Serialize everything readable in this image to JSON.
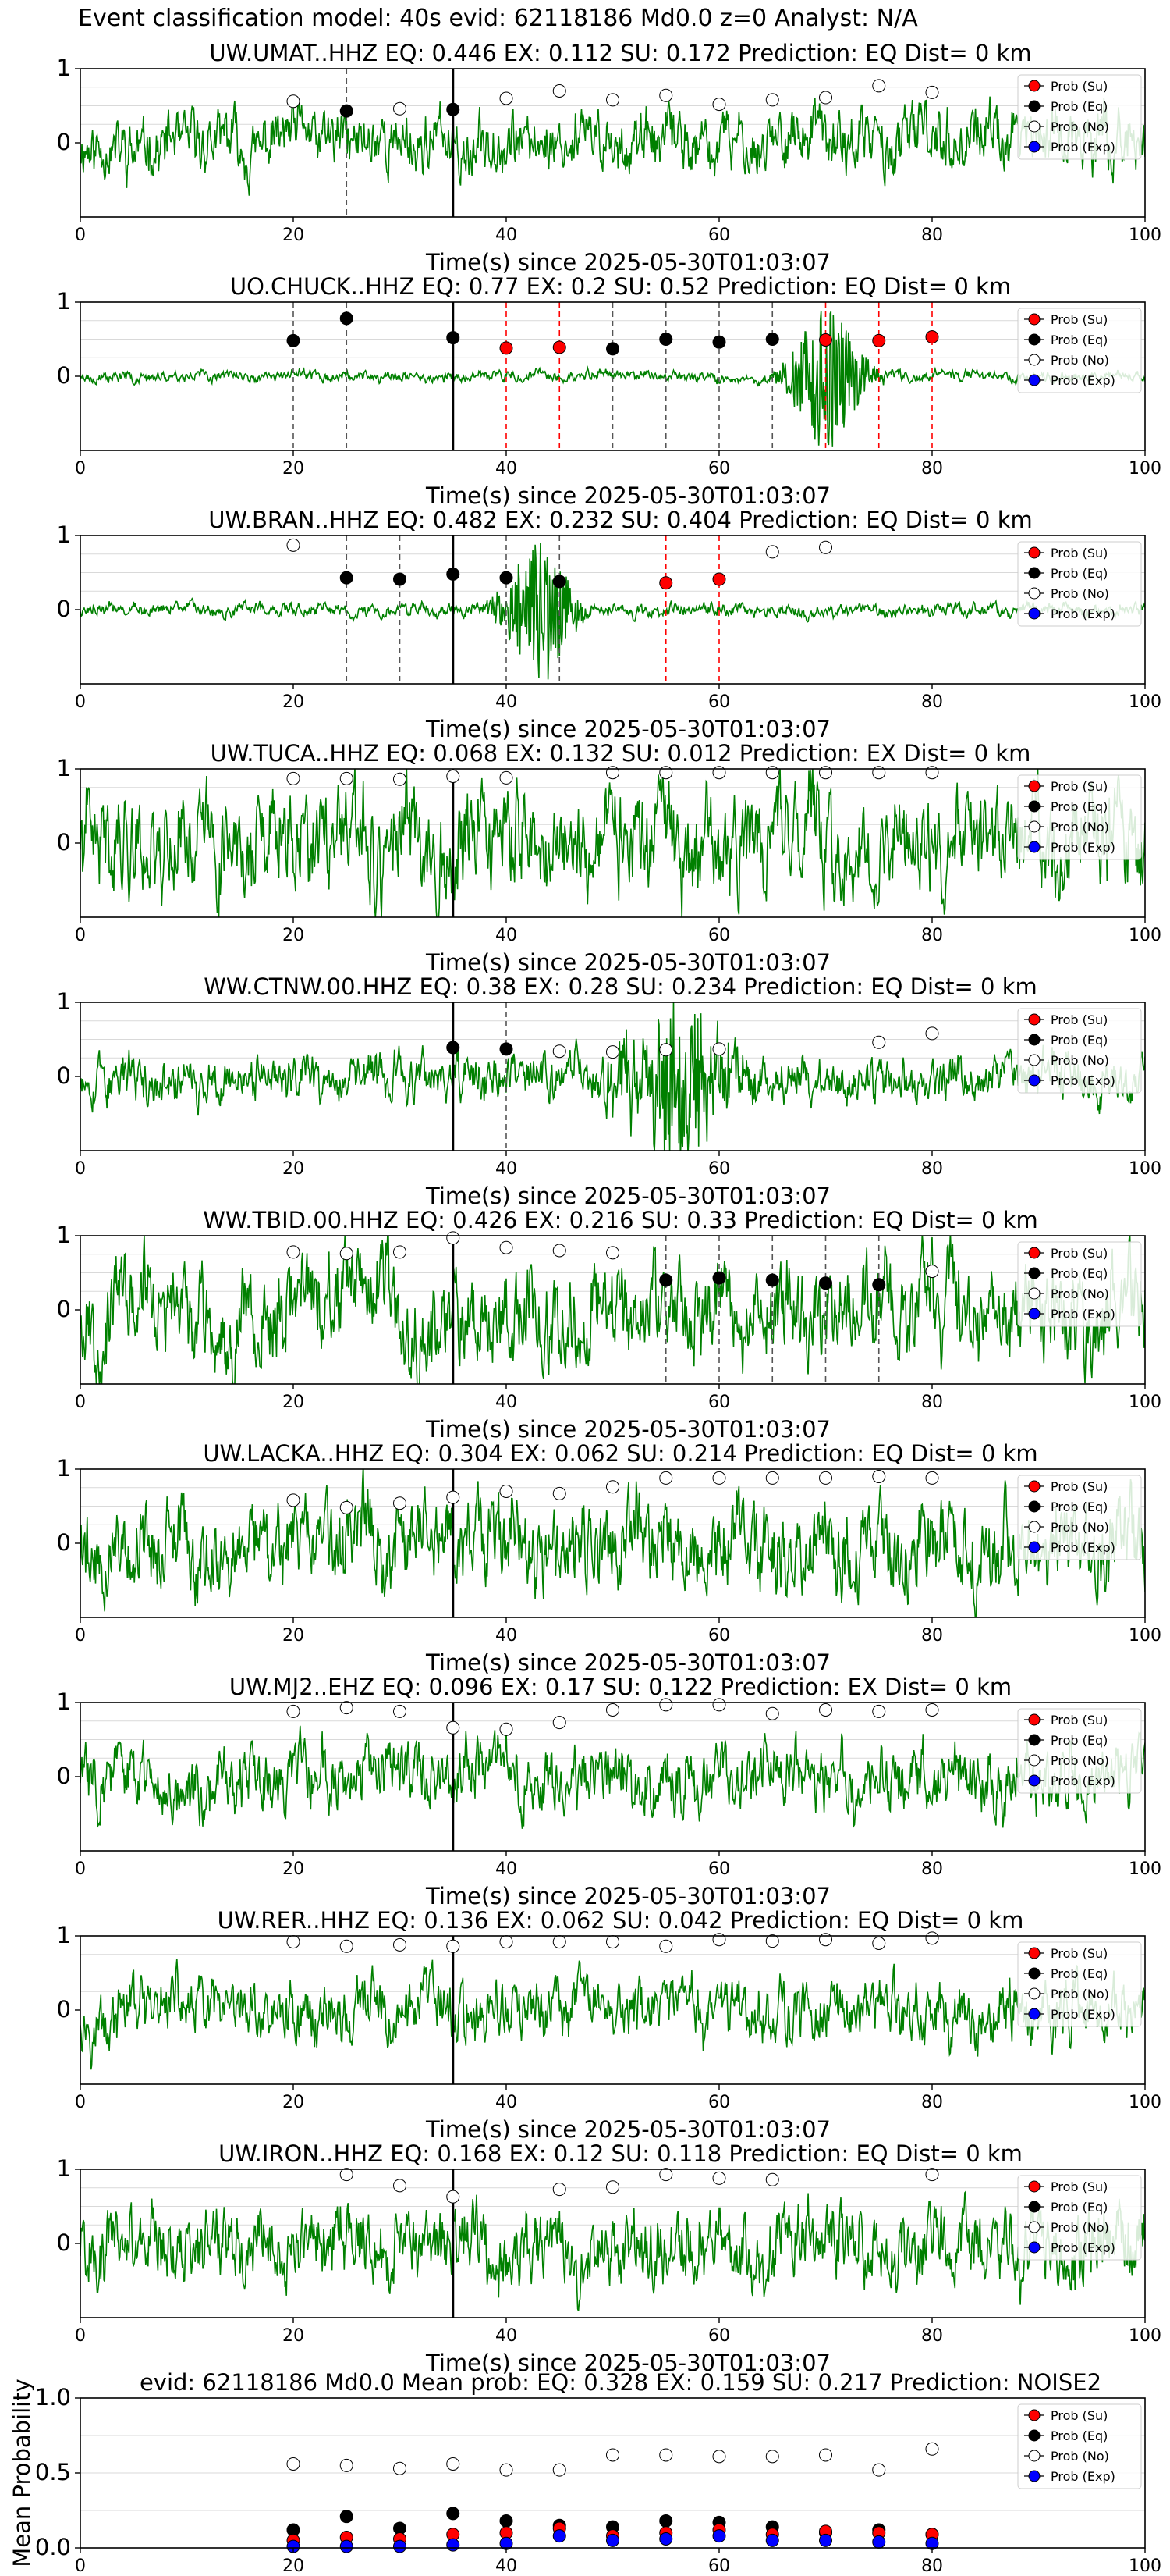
{
  "page_title": "Event classification model: 40s evid: 62118186 Md0.0 z=0 Analyst: N/A",
  "legend": [
    "Prob (Su)",
    "Prob (Eq)",
    "Prob (No)",
    "Prob (Exp)"
  ],
  "colors": {
    "waveform": "#008000",
    "su": "#ff0000",
    "eq": "#000000",
    "no": "#ffffff",
    "exp": "#0000ff",
    "grid": "#d9d9d9"
  },
  "chart_data": [
    {
      "type": "line",
      "title": "UW.UMAT..HHZ   EQ: 0.446  EX: 0.112  SU: 0.172   Prediction: EQ    Dist= 0 km",
      "xlabel": "Time(s) since 2025-05-30T01:03:07",
      "xlim": [
        0,
        100
      ],
      "ylim": [
        -1,
        1
      ],
      "xticks": [
        0,
        20,
        40,
        60,
        80,
        100
      ],
      "yticks": [
        0,
        1
      ],
      "onset_line_x": 35,
      "waveform_note": "normalized seismogram trace",
      "waveform_amplitude": 0.45,
      "waveform_seed": 11,
      "points": [
        {
          "x": 20,
          "y": 0.56,
          "class": "no"
        },
        {
          "x": 25,
          "y": 0.43,
          "class": "eq",
          "dashed": true
        },
        {
          "x": 30,
          "y": 0.46,
          "class": "no"
        },
        {
          "x": 35,
          "y": 0.45,
          "class": "eq"
        },
        {
          "x": 40,
          "y": 0.6,
          "class": "no"
        },
        {
          "x": 45,
          "y": 0.7,
          "class": "no"
        },
        {
          "x": 50,
          "y": 0.58,
          "class": "no"
        },
        {
          "x": 55,
          "y": 0.64,
          "class": "no"
        },
        {
          "x": 60,
          "y": 0.52,
          "class": "no"
        },
        {
          "x": 65,
          "y": 0.58,
          "class": "no"
        },
        {
          "x": 70,
          "y": 0.61,
          "class": "no"
        },
        {
          "x": 75,
          "y": 0.77,
          "class": "no"
        },
        {
          "x": 80,
          "y": 0.68,
          "class": "no"
        }
      ]
    },
    {
      "type": "line",
      "title": "UO.CHUCK..HHZ   EQ: 0.77  EX: 0.2  SU: 0.52   Prediction: EQ    Dist= 0 km",
      "xlabel": "Time(s) since 2025-05-30T01:03:07",
      "xlim": [
        0,
        100
      ],
      "ylim": [
        -1,
        1
      ],
      "xticks": [
        0,
        20,
        40,
        60,
        80,
        100
      ],
      "yticks": [
        0,
        1
      ],
      "onset_line_x": 35,
      "waveform_note": "low-noise trace with burst near 70 s",
      "waveform_amplitude": 0.08,
      "waveform_seed": 23,
      "waveform_burst": {
        "center": 70,
        "width": 3,
        "amplitude": 1.0
      },
      "points": [
        {
          "x": 20,
          "y": 0.48,
          "class": "eq",
          "dashed": true
        },
        {
          "x": 25,
          "y": 0.78,
          "class": "eq",
          "dashed": true
        },
        {
          "x": 35,
          "y": 0.52,
          "class": "eq"
        },
        {
          "x": 40,
          "y": 0.38,
          "class": "su",
          "dashed": true
        },
        {
          "x": 45,
          "y": 0.39,
          "class": "su",
          "dashed": true
        },
        {
          "x": 50,
          "y": 0.37,
          "class": "eq",
          "dashed": true
        },
        {
          "x": 55,
          "y": 0.5,
          "class": "eq",
          "dashed": true
        },
        {
          "x": 60,
          "y": 0.46,
          "class": "eq",
          "dashed": true
        },
        {
          "x": 65,
          "y": 0.5,
          "class": "eq",
          "dashed": true
        },
        {
          "x": 70,
          "y": 0.49,
          "class": "su",
          "dashed": true
        },
        {
          "x": 75,
          "y": 0.48,
          "class": "su",
          "dashed": true
        },
        {
          "x": 80,
          "y": 0.53,
          "class": "su",
          "dashed": true
        }
      ]
    },
    {
      "type": "line",
      "title": "UW.BRAN..HHZ   EQ: 0.482  EX: 0.232  SU: 0.404   Prediction: EQ    Dist= 0 km",
      "xlabel": "Time(s) since 2025-05-30T01:03:07",
      "xlim": [
        0,
        100
      ],
      "ylim": [
        -1,
        1
      ],
      "xticks": [
        0,
        20,
        40,
        60,
        80,
        100
      ],
      "yticks": [
        0,
        1
      ],
      "onset_line_x": 35,
      "waveform_note": "low-noise trace with burst near 43 s",
      "waveform_amplitude": 0.1,
      "waveform_seed": 37,
      "waveform_burst": {
        "center": 43,
        "width": 3,
        "amplitude": 1.0
      },
      "points": [
        {
          "x": 20,
          "y": 0.87,
          "class": "no"
        },
        {
          "x": 25,
          "y": 0.43,
          "class": "eq",
          "dashed": true
        },
        {
          "x": 30,
          "y": 0.41,
          "class": "eq",
          "dashed": true
        },
        {
          "x": 35,
          "y": 0.48,
          "class": "eq"
        },
        {
          "x": 40,
          "y": 0.43,
          "class": "eq",
          "dashed": true
        },
        {
          "x": 45,
          "y": 0.38,
          "class": "eq",
          "dashed": true
        },
        {
          "x": 55,
          "y": 0.36,
          "class": "su",
          "dashed": true
        },
        {
          "x": 60,
          "y": 0.41,
          "class": "su",
          "dashed": true
        },
        {
          "x": 65,
          "y": 0.78,
          "class": "no"
        },
        {
          "x": 70,
          "y": 0.84,
          "class": "no"
        }
      ]
    },
    {
      "type": "line",
      "title": "UW.TUCA..HHZ   EQ: 0.068  EX: 0.132  SU: 0.012   Prediction: EX    Dist= 0 km",
      "xlabel": "Time(s) since 2025-05-30T01:03:07",
      "xlim": [
        0,
        100
      ],
      "ylim": [
        -1,
        1
      ],
      "xticks": [
        0,
        20,
        40,
        60,
        80,
        100
      ],
      "yticks": [
        0,
        1
      ],
      "onset_line_x": 35,
      "waveform_note": "broadband noise trace",
      "waveform_amplitude": 0.75,
      "waveform_seed": 41,
      "points": [
        {
          "x": 20,
          "y": 0.87,
          "class": "no"
        },
        {
          "x": 25,
          "y": 0.87,
          "class": "no"
        },
        {
          "x": 30,
          "y": 0.86,
          "class": "no"
        },
        {
          "x": 35,
          "y": 0.9,
          "class": "no"
        },
        {
          "x": 40,
          "y": 0.88,
          "class": "no"
        },
        {
          "x": 50,
          "y": 0.95,
          "class": "no"
        },
        {
          "x": 55,
          "y": 0.95,
          "class": "no"
        },
        {
          "x": 60,
          "y": 0.95,
          "class": "no"
        },
        {
          "x": 65,
          "y": 0.95,
          "class": "no"
        },
        {
          "x": 70,
          "y": 0.95,
          "class": "no"
        },
        {
          "x": 75,
          "y": 0.95,
          "class": "no"
        },
        {
          "x": 80,
          "y": 0.95,
          "class": "no"
        }
      ]
    },
    {
      "type": "line",
      "title": "WW.CTNW.00.HHZ   EQ: 0.38  EX: 0.28  SU: 0.234   Prediction: EQ    Dist= 0 km",
      "xlabel": "Time(s) since 2025-05-30T01:03:07",
      "xlim": [
        0,
        100
      ],
      "ylim": [
        -1,
        1
      ],
      "xticks": [
        0,
        20,
        40,
        60,
        80,
        100
      ],
      "yticks": [
        0,
        1
      ],
      "onset_line_x": 35,
      "waveform_note": "trace with strong burst near 56 s",
      "waveform_amplitude": 0.35,
      "waveform_seed": 53,
      "waveform_burst": {
        "center": 56,
        "width": 5,
        "amplitude": 1.0
      },
      "points": [
        {
          "x": 35,
          "y": 0.39,
          "class": "eq"
        },
        {
          "x": 40,
          "y": 0.37,
          "class": "eq",
          "dashed": true
        },
        {
          "x": 45,
          "y": 0.34,
          "class": "no"
        },
        {
          "x": 50,
          "y": 0.33,
          "class": "no"
        },
        {
          "x": 55,
          "y": 0.36,
          "class": "no"
        },
        {
          "x": 60,
          "y": 0.37,
          "class": "no"
        },
        {
          "x": 75,
          "y": 0.46,
          "class": "no"
        },
        {
          "x": 80,
          "y": 0.58,
          "class": "no"
        }
      ]
    },
    {
      "type": "line",
      "title": "WW.TBID.00.HHZ   EQ: 0.426  EX: 0.216  SU: 0.33   Prediction: EQ    Dist= 0 km",
      "xlabel": "Time(s) since 2025-05-30T01:03:07",
      "xlim": [
        0,
        100
      ],
      "ylim": [
        -1,
        1
      ],
      "xticks": [
        0,
        20,
        40,
        60,
        80,
        100
      ],
      "yticks": [
        0,
        1
      ],
      "onset_line_x": 35,
      "waveform_note": "broadband noise trace",
      "waveform_amplitude": 0.7,
      "waveform_seed": 67,
      "points": [
        {
          "x": 20,
          "y": 0.78,
          "class": "no"
        },
        {
          "x": 25,
          "y": 0.76,
          "class": "no"
        },
        {
          "x": 30,
          "y": 0.78,
          "class": "no"
        },
        {
          "x": 35,
          "y": 0.97,
          "class": "no"
        },
        {
          "x": 40,
          "y": 0.84,
          "class": "no"
        },
        {
          "x": 45,
          "y": 0.8,
          "class": "no"
        },
        {
          "x": 50,
          "y": 0.77,
          "class": "no"
        },
        {
          "x": 55,
          "y": 0.4,
          "class": "eq",
          "dashed": true
        },
        {
          "x": 60,
          "y": 0.43,
          "class": "eq",
          "dashed": true
        },
        {
          "x": 65,
          "y": 0.4,
          "class": "eq",
          "dashed": true
        },
        {
          "x": 70,
          "y": 0.36,
          "class": "eq",
          "dashed": true
        },
        {
          "x": 75,
          "y": 0.34,
          "class": "eq",
          "dashed": true
        },
        {
          "x": 80,
          "y": 0.52,
          "class": "no"
        }
      ]
    },
    {
      "type": "line",
      "title": "UW.LACKA..HHZ   EQ: 0.304  EX: 0.062  SU: 0.214   Prediction: EQ    Dist= 0 km",
      "xlabel": "Time(s) since 2025-05-30T01:03:07",
      "xlim": [
        0,
        100
      ],
      "ylim": [
        -1,
        1
      ],
      "xticks": [
        0,
        20,
        40,
        60,
        80,
        100
      ],
      "yticks": [
        0,
        1
      ],
      "onset_line_x": 35,
      "waveform_note": "broadband noise trace",
      "waveform_amplitude": 0.65,
      "waveform_seed": 79,
      "points": [
        {
          "x": 20,
          "y": 0.58,
          "class": "no"
        },
        {
          "x": 25,
          "y": 0.48,
          "class": "no"
        },
        {
          "x": 30,
          "y": 0.54,
          "class": "no"
        },
        {
          "x": 35,
          "y": 0.62,
          "class": "no"
        },
        {
          "x": 40,
          "y": 0.7,
          "class": "no"
        },
        {
          "x": 45,
          "y": 0.67,
          "class": "no"
        },
        {
          "x": 50,
          "y": 0.76,
          "class": "no"
        },
        {
          "x": 55,
          "y": 0.88,
          "class": "no"
        },
        {
          "x": 60,
          "y": 0.88,
          "class": "no"
        },
        {
          "x": 65,
          "y": 0.88,
          "class": "no"
        },
        {
          "x": 70,
          "y": 0.88,
          "class": "no"
        },
        {
          "x": 75,
          "y": 0.9,
          "class": "no"
        },
        {
          "x": 80,
          "y": 0.88,
          "class": "no"
        }
      ]
    },
    {
      "type": "line",
      "title": "UW.MJ2..EHZ   EQ: 0.096  EX: 0.17  SU: 0.122   Prediction: EX    Dist= 0 km",
      "xlabel": "Time(s) since 2025-05-30T01:03:07",
      "xlim": [
        0,
        100
      ],
      "ylim": [
        -1,
        1
      ],
      "xticks": [
        0,
        20,
        40,
        60,
        80,
        100
      ],
      "yticks": [
        0,
        1
      ],
      "onset_line_x": 35,
      "waveform_note": "broadband noise trace",
      "waveform_amplitude": 0.5,
      "waveform_seed": 83,
      "points": [
        {
          "x": 20,
          "y": 0.88,
          "class": "no"
        },
        {
          "x": 25,
          "y": 0.93,
          "class": "no"
        },
        {
          "x": 30,
          "y": 0.88,
          "class": "no"
        },
        {
          "x": 35,
          "y": 0.66,
          "class": "no"
        },
        {
          "x": 40,
          "y": 0.64,
          "class": "no"
        },
        {
          "x": 45,
          "y": 0.73,
          "class": "no"
        },
        {
          "x": 50,
          "y": 0.9,
          "class": "no"
        },
        {
          "x": 55,
          "y": 0.97,
          "class": "no"
        },
        {
          "x": 60,
          "y": 0.97,
          "class": "no"
        },
        {
          "x": 65,
          "y": 0.85,
          "class": "no"
        },
        {
          "x": 70,
          "y": 0.9,
          "class": "no"
        },
        {
          "x": 75,
          "y": 0.88,
          "class": "no"
        },
        {
          "x": 80,
          "y": 0.9,
          "class": "no"
        }
      ]
    },
    {
      "type": "line",
      "title": "UW.RER..HHZ   EQ: 0.136  EX: 0.062  SU: 0.042   Prediction: EQ    Dist= 0 km",
      "xlabel": "Time(s) since 2025-05-30T01:03:07",
      "xlim": [
        0,
        100
      ],
      "ylim": [
        -1,
        1
      ],
      "xticks": [
        0,
        20,
        40,
        60,
        80,
        100
      ],
      "yticks": [
        0,
        1
      ],
      "onset_line_x": 35,
      "waveform_note": "low-frequency trace",
      "waveform_amplitude": 0.45,
      "waveform_seed": 97,
      "points": [
        {
          "x": 20,
          "y": 0.92,
          "class": "no"
        },
        {
          "x": 25,
          "y": 0.86,
          "class": "no"
        },
        {
          "x": 30,
          "y": 0.88,
          "class": "no"
        },
        {
          "x": 35,
          "y": 0.86,
          "class": "no"
        },
        {
          "x": 40,
          "y": 0.92,
          "class": "no"
        },
        {
          "x": 45,
          "y": 0.92,
          "class": "no"
        },
        {
          "x": 50,
          "y": 0.92,
          "class": "no"
        },
        {
          "x": 55,
          "y": 0.86,
          "class": "no"
        },
        {
          "x": 60,
          "y": 0.95,
          "class": "no"
        },
        {
          "x": 65,
          "y": 0.93,
          "class": "no"
        },
        {
          "x": 70,
          "y": 0.95,
          "class": "no"
        },
        {
          "x": 75,
          "y": 0.9,
          "class": "no"
        },
        {
          "x": 80,
          "y": 0.97,
          "class": "no"
        }
      ]
    },
    {
      "type": "line",
      "title": "UW.IRON..HHZ   EQ: 0.168  EX: 0.12  SU: 0.118   Prediction: EQ    Dist= 0 km",
      "xlabel": "Time(s) since 2025-05-30T01:03:07",
      "xlim": [
        0,
        100
      ],
      "ylim": [
        -1,
        1
      ],
      "xticks": [
        0,
        20,
        40,
        60,
        80,
        100
      ],
      "yticks": [
        0,
        1
      ],
      "onset_line_x": 35,
      "waveform_note": "noise trace",
      "waveform_amplitude": 0.55,
      "waveform_seed": 101,
      "points": [
        {
          "x": 25,
          "y": 0.93,
          "class": "no"
        },
        {
          "x": 30,
          "y": 0.78,
          "class": "no"
        },
        {
          "x": 35,
          "y": 0.63,
          "class": "no"
        },
        {
          "x": 45,
          "y": 0.73,
          "class": "no"
        },
        {
          "x": 50,
          "y": 0.76,
          "class": "no"
        },
        {
          "x": 55,
          "y": 0.93,
          "class": "no"
        },
        {
          "x": 60,
          "y": 0.88,
          "class": "no"
        },
        {
          "x": 65,
          "y": 0.86,
          "class": "no"
        },
        {
          "x": 80,
          "y": 0.93,
          "class": "no"
        }
      ]
    },
    {
      "type": "scatter",
      "title": "evid: 62118186  Md0.0   Mean prob:   EQ: 0.328  EX: 0.159  SU: 0.217   Prediction: NOISE2",
      "ylabel": "Mean Probability",
      "xlim": [
        0,
        100
      ],
      "ylim": [
        0,
        1
      ],
      "xticks": [
        0,
        20,
        40,
        60,
        80,
        100
      ],
      "yticks": [
        0.0,
        0.5,
        1.0
      ],
      "x": [
        20,
        25,
        30,
        35,
        40,
        45,
        50,
        55,
        60,
        65,
        70,
        75,
        80
      ],
      "series": [
        {
          "name": "Prob (No)",
          "class": "no",
          "values": [
            0.56,
            0.55,
            0.53,
            0.56,
            0.52,
            0.52,
            0.62,
            0.62,
            0.61,
            0.61,
            0.62,
            0.52,
            0.66
          ]
        },
        {
          "name": "Prob (Eq)",
          "class": "eq",
          "values": [
            0.12,
            0.21,
            0.13,
            0.23,
            0.18,
            0.15,
            0.14,
            0.18,
            0.17,
            0.14,
            0.1,
            0.12,
            0.09
          ]
        },
        {
          "name": "Prob (Su)",
          "class": "su",
          "values": [
            0.05,
            0.07,
            0.06,
            0.09,
            0.1,
            0.13,
            0.08,
            0.1,
            0.12,
            0.09,
            0.11,
            0.1,
            0.09
          ]
        },
        {
          "name": "Prob (Exp)",
          "class": "exp",
          "values": [
            0.01,
            0.01,
            0.01,
            0.02,
            0.03,
            0.08,
            0.05,
            0.06,
            0.08,
            0.05,
            0.05,
            0.04,
            0.03
          ]
        }
      ]
    }
  ]
}
